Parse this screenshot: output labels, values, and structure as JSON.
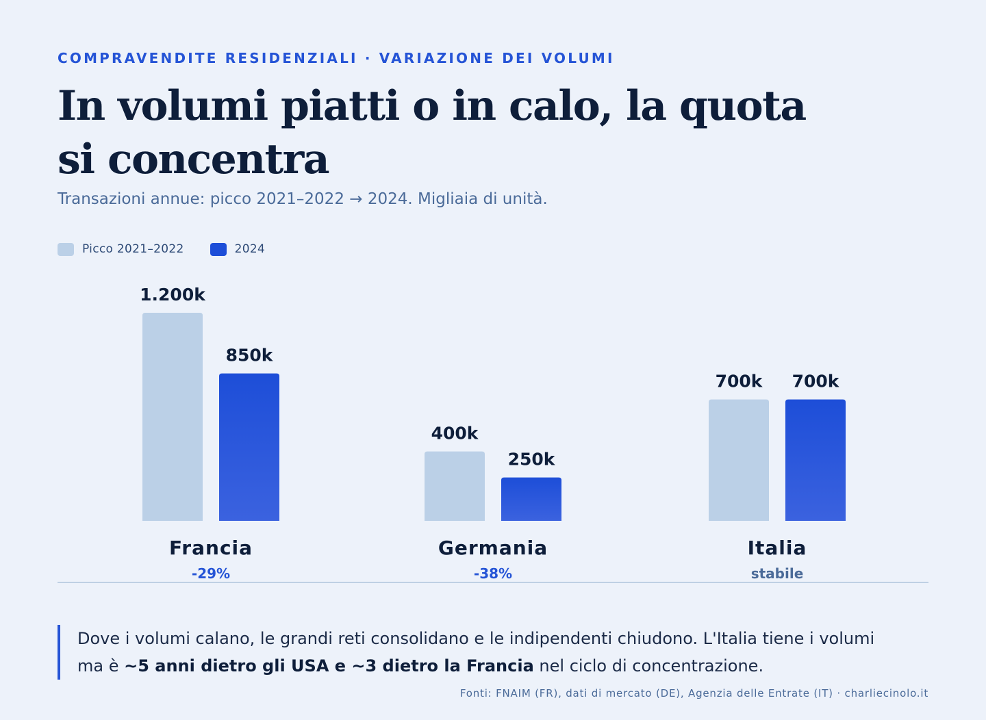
{
  "header": {
    "eyebrow": "COMPRAVENDITE RESIDENZIALI · VARIAZIONE DEI VOLUMI",
    "title": "In volumi piatti o in calo, la quota si concentra",
    "subtitle": "Transazioni annue: picco 2021–2022 → 2024. Migliaia di unità."
  },
  "colors": {
    "background": "#EDF2FA",
    "accent": "#2554D6",
    "peak": "#BBD0E7",
    "current_top": "#1D4ED8",
    "current_bottom": "#3B62DF"
  },
  "chart_data": {
    "type": "bar",
    "categories": [
      "Francia",
      "Germania",
      "Italia"
    ],
    "series": [
      {
        "name": "Picco 2021–2022",
        "values": [
          1200,
          400,
          700
        ],
        "labels": [
          "1.200k",
          "400k",
          "700k"
        ],
        "color": "#BBD0E7"
      },
      {
        "name": "2024",
        "values": [
          850,
          250,
          700
        ],
        "labels": [
          "850k",
          "250k",
          "700k"
        ],
        "color": "#1D4ED8"
      }
    ],
    "changes": [
      "-29%",
      "-38%",
      "stabile"
    ],
    "ylim": [
      0,
      1200
    ],
    "grid": false,
    "legend_position": "top-left"
  },
  "note": {
    "part1": "Dove i volumi calano, le grandi reti consolidano e le indipendenti chiudono. L'Italia tiene i volumi ma è ",
    "strong": "~5 anni dietro gli USA e ~3 dietro la Francia",
    "part2": " nel ciclo di concentrazione."
  },
  "source": "Fonti: FNAIM (FR), dati di mercato (DE), Agenzia delle Entrate (IT) · charliecinolo.it"
}
